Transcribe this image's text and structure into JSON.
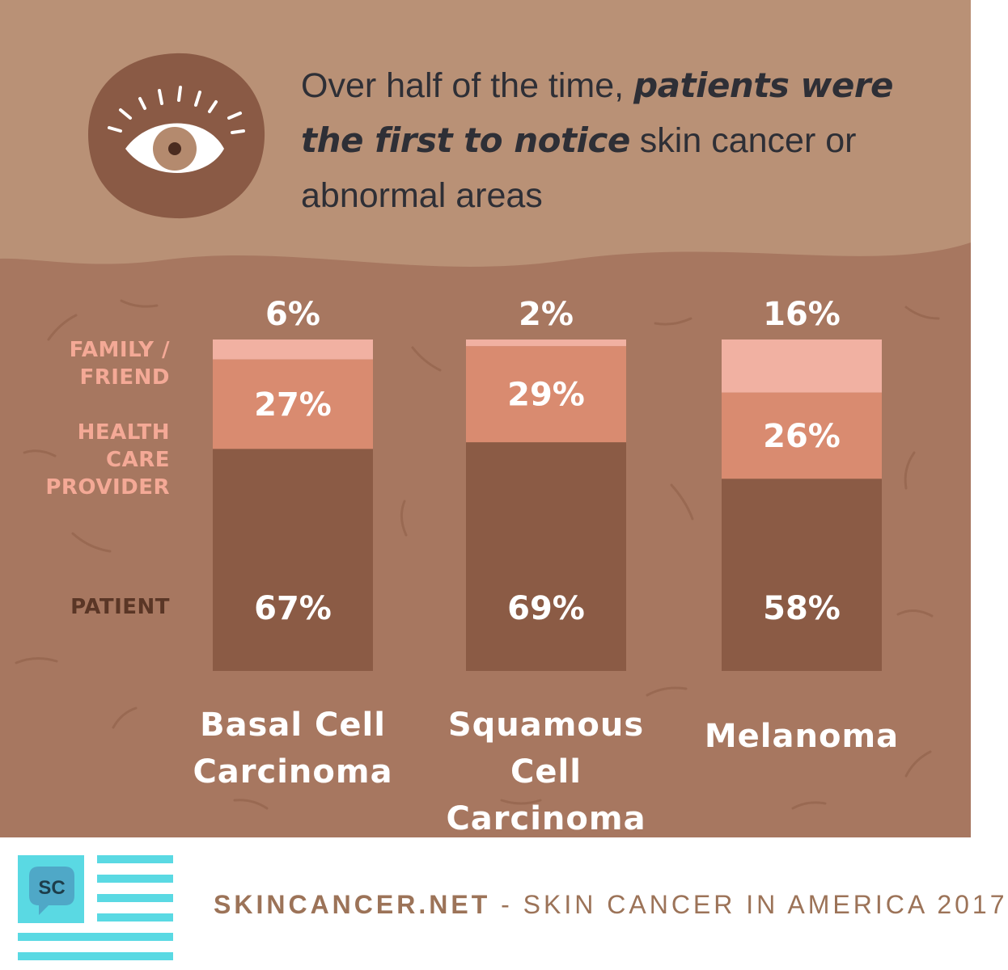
{
  "headline": {
    "part1": "Over half of the time, ",
    "emphasis": "patients were the first to notice",
    "part2": " skin cancer or abnormal areas"
  },
  "colors": {
    "top_band": "#b99176",
    "bottom_band": "#a77760",
    "eye_badge": "#8a5a45",
    "patient": "#8b5b45",
    "health_care_provider": "#d98b70",
    "family_friend": "#f1b1a2",
    "patient_label": "#5a3626",
    "provider_label": "#f4a996",
    "family_label": "#f4a996",
    "footer_text": "#9c7358",
    "logo_cyan": "#5ad9e3",
    "logo_badge": "#4fa8c7"
  },
  "icons": {
    "eye": "eye-icon",
    "logo": "chat-bubble-logo-icon"
  },
  "legend": [
    {
      "key": "family_friend",
      "label": "FAMILY /\nFRIEND"
    },
    {
      "key": "health_care_provider",
      "label": "HEALTH\nCARE\nPROVIDER"
    },
    {
      "key": "patient",
      "label": "PATIENT"
    }
  ],
  "chart_data": {
    "type": "bar",
    "stacked": true,
    "categories": [
      "Basal Cell\nCarcinoma",
      "Squamous Cell\nCarcinoma",
      "Melanoma"
    ],
    "series": [
      {
        "name": "PATIENT",
        "values": [
          67,
          69,
          58
        ],
        "labels": [
          "67%",
          "69%",
          "58%"
        ]
      },
      {
        "name": "HEALTH CARE PROVIDER",
        "values": [
          27,
          29,
          26
        ],
        "labels": [
          "27%",
          "29%",
          "26%"
        ]
      },
      {
        "name": "FAMILY / FRIEND",
        "values": [
          6,
          2,
          16
        ],
        "labels": [
          "6%",
          "2%",
          "16%"
        ]
      }
    ],
    "ylim": [
      0,
      100
    ],
    "grid": false
  },
  "footer": {
    "logo_text": "SC",
    "site": "SKINCANCER.NET",
    "tagline": " - SKIN CANCER IN AMERICA 2017"
  }
}
